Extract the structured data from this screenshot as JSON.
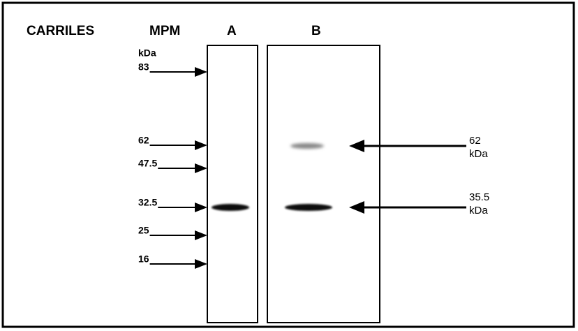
{
  "header": {
    "labels": [
      "CARRILES",
      "MPM",
      "A",
      "B"
    ]
  },
  "markers": {
    "unit": "kDa",
    "labels": [
      "83",
      "62",
      "47.5",
      "32.5",
      "25",
      "16"
    ]
  },
  "annotations": [
    {
      "value": "62",
      "unit": "kDa"
    },
    {
      "value": "35.5",
      "unit": "kDa"
    }
  ]
}
